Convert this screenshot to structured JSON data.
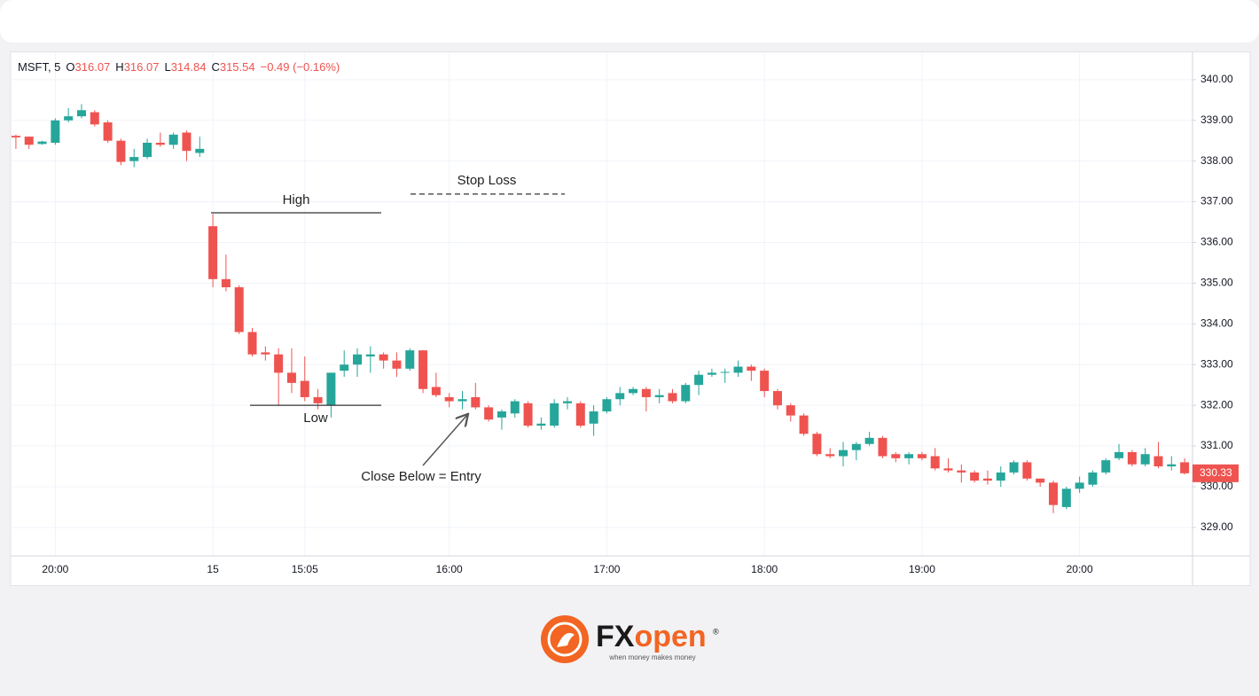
{
  "chart_data": {
    "type": "candlestick",
    "header": {
      "symbol": "MSFT, 5",
      "fields": [
        {
          "label": "O",
          "value": 316.07
        },
        {
          "label": "H",
          "value": 316.07
        },
        {
          "label": "L",
          "value": 314.84
        },
        {
          "label": "C",
          "value": 315.54
        }
      ],
      "change": "−0.49 (−0.16%)"
    },
    "categories": [
      null,
      null,
      null,
      "20:00",
      null,
      null,
      null,
      null,
      null,
      null,
      null,
      null,
      null,
      null,
      null,
      "15",
      null,
      null,
      null,
      null,
      null,
      null,
      "15:05",
      null,
      null,
      null,
      null,
      null,
      null,
      null,
      null,
      null,
      null,
      "16:00",
      null,
      null,
      null,
      null,
      null,
      null,
      null,
      null,
      null,
      null,
      null,
      "17:00",
      null,
      null,
      null,
      null,
      null,
      null,
      null,
      null,
      null,
      null,
      null,
      "18:00",
      null,
      null,
      null,
      null,
      null,
      null,
      null,
      null,
      null,
      null,
      null,
      "19:00",
      null,
      null,
      null,
      null,
      null,
      null,
      null,
      null,
      null,
      null,
      null,
      "20:00",
      null,
      null,
      null,
      null,
      null,
      null,
      null,
      null
    ],
    "open": [
      338.62,
      338.6,
      338.42,
      338.45,
      339.0,
      339.1,
      339.2,
      338.95,
      338.5,
      338.0,
      338.1,
      338.45,
      338.4,
      338.7,
      338.2,
      336.4,
      335.1,
      334.9,
      333.8,
      333.3,
      333.25,
      332.8,
      332.6,
      332.2,
      332.0,
      332.85,
      333.0,
      333.2,
      333.25,
      333.1,
      332.9,
      333.35,
      332.45,
      332.2,
      332.1,
      332.2,
      331.95,
      331.7,
      331.8,
      332.05,
      331.5,
      331.5,
      332.05,
      332.05,
      331.55,
      331.85,
      332.15,
      332.3,
      332.4,
      332.2,
      332.3,
      332.1,
      332.5,
      332.75,
      332.8,
      332.8,
      332.95,
      332.85,
      332.35,
      332.0,
      331.75,
      331.3,
      330.8,
      330.75,
      330.9,
      331.05,
      331.2,
      330.8,
      330.7,
      330.8,
      330.75,
      330.45,
      330.4,
      330.35,
      330.2,
      330.15,
      330.35,
      330.6,
      330.2,
      330.1,
      329.5,
      329.95,
      330.05,
      330.35,
      330.7,
      330.85,
      330.55,
      330.75,
      330.5,
      330.6
    ],
    "high": [
      338.65,
      338.6,
      338.5,
      339.05,
      339.3,
      339.4,
      339.25,
      339.0,
      338.55,
      338.3,
      338.55,
      338.7,
      338.7,
      338.75,
      338.6,
      336.7,
      335.7,
      334.95,
      333.9,
      333.45,
      333.4,
      333.4,
      333.2,
      332.4,
      332.8,
      333.35,
      333.4,
      333.45,
      333.3,
      333.3,
      333.4,
      333.35,
      332.8,
      332.3,
      332.35,
      332.55,
      332.0,
      331.9,
      332.15,
      332.1,
      331.7,
      332.15,
      332.2,
      332.1,
      332.0,
      332.2,
      332.45,
      332.45,
      332.45,
      332.4,
      332.4,
      332.55,
      332.85,
      332.9,
      332.9,
      333.1,
      333.0,
      332.9,
      332.4,
      332.05,
      331.8,
      331.35,
      330.95,
      331.1,
      331.1,
      331.35,
      331.25,
      330.85,
      330.85,
      330.85,
      330.95,
      330.7,
      330.55,
      330.4,
      330.4,
      330.5,
      330.65,
      330.65,
      330.2,
      330.15,
      330.0,
      330.25,
      330.4,
      330.7,
      331.05,
      330.9,
      330.95,
      331.1,
      330.75,
      330.7
    ],
    "low": [
      338.3,
      338.3,
      338.4,
      338.4,
      338.95,
      339.05,
      338.85,
      338.45,
      337.9,
      337.85,
      338.05,
      338.35,
      338.3,
      338.0,
      338.1,
      334.9,
      334.8,
      333.75,
      333.2,
      333.1,
      332.0,
      332.3,
      332.1,
      331.9,
      331.7,
      332.7,
      332.7,
      332.8,
      332.9,
      332.7,
      332.85,
      332.3,
      332.2,
      331.95,
      331.9,
      331.9,
      331.6,
      331.4,
      331.7,
      331.45,
      331.4,
      331.45,
      331.9,
      331.45,
      331.25,
      331.8,
      332.0,
      332.25,
      331.85,
      332.05,
      332.05,
      332.05,
      332.25,
      332.7,
      332.55,
      332.7,
      332.6,
      332.2,
      331.9,
      331.6,
      331.25,
      330.75,
      330.7,
      330.5,
      330.65,
      331.0,
      330.7,
      330.6,
      330.55,
      330.65,
      330.4,
      330.35,
      330.1,
      330.1,
      330.05,
      330.0,
      330.3,
      330.15,
      330.0,
      329.35,
      329.45,
      329.85,
      330.0,
      330.3,
      330.65,
      330.5,
      330.5,
      330.45,
      330.4,
      330.3
    ],
    "close": [
      338.58,
      338.4,
      338.48,
      339.0,
      339.1,
      339.25,
      338.9,
      338.5,
      337.98,
      338.1,
      338.45,
      338.4,
      338.65,
      338.25,
      338.3,
      335.1,
      334.9,
      333.8,
      333.25,
      333.25,
      332.8,
      332.55,
      332.2,
      332.05,
      332.8,
      333.0,
      333.25,
      333.25,
      333.1,
      332.9,
      333.35,
      332.4,
      332.25,
      332.1,
      332.15,
      331.95,
      331.65,
      331.85,
      332.1,
      331.5,
      331.55,
      332.05,
      332.1,
      331.5,
      331.85,
      332.15,
      332.3,
      332.4,
      332.2,
      332.25,
      332.1,
      332.5,
      332.75,
      332.8,
      332.82,
      332.95,
      332.85,
      332.35,
      332.0,
      331.75,
      331.3,
      330.8,
      330.75,
      330.9,
      331.05,
      331.2,
      330.75,
      330.7,
      330.8,
      330.7,
      330.45,
      330.4,
      330.35,
      330.15,
      330.15,
      330.35,
      330.6,
      330.2,
      330.1,
      329.55,
      329.95,
      330.1,
      330.35,
      330.65,
      330.85,
      330.55,
      330.8,
      330.5,
      330.55,
      330.33
    ],
    "up_color": "#26a69a",
    "down_color": "#ef5350",
    "ylim": [
      328.3,
      340.65
    ],
    "yticks": [
      {
        "value": 329,
        "label": "329.00"
      },
      {
        "value": 330,
        "label": "330.00"
      },
      {
        "value": 331,
        "label": "331.00"
      },
      {
        "value": 332,
        "label": "332.00"
      },
      {
        "value": 333,
        "label": "333.00"
      },
      {
        "value": 334,
        "label": "334.00"
      },
      {
        "value": 335,
        "label": "335.00"
      },
      {
        "value": 336,
        "label": "336.00"
      },
      {
        "value": 337,
        "label": "337.00"
      },
      {
        "value": 338,
        "label": "338.00"
      },
      {
        "value": 339,
        "label": "339.00"
      },
      {
        "value": 340,
        "label": "340.00"
      }
    ],
    "grid": true,
    "annotations": [
      {
        "text": "High",
        "value": 336.73
      },
      {
        "text": "Stop Loss",
        "value": 337.19
      },
      {
        "text": "Low",
        "value": 332.0
      },
      {
        "text": "Close Below = Entry"
      }
    ]
  },
  "brand": {
    "fx": "FX",
    "open": "open",
    "mark": "®",
    "tagline": "when money makes money"
  }
}
